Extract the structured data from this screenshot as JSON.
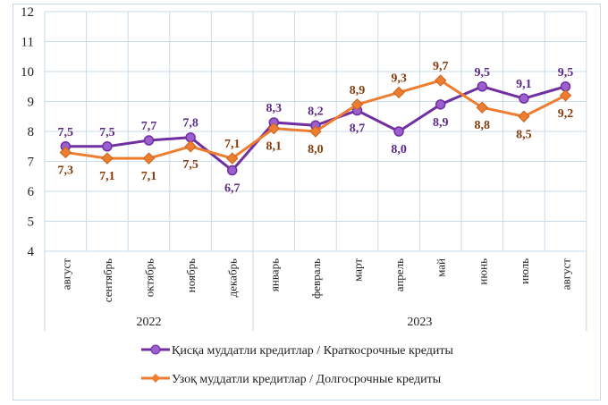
{
  "chart_data": {
    "type": "line",
    "categories": [
      "август",
      "сентябрь",
      "октябрь",
      "ноябрь",
      "декабрь",
      "январь",
      "февраль",
      "март",
      "апрель",
      "май",
      "июнь",
      "июль",
      "август"
    ],
    "groups": [
      {
        "label": "2022",
        "count": 5
      },
      {
        "label": "2023",
        "count": 8
      }
    ],
    "ylim": [
      4,
      12
    ],
    "yticks": [
      4,
      5,
      6,
      7,
      8,
      9,
      10,
      11,
      12
    ],
    "grid": true,
    "legend_position": "bottom",
    "series": [
      {
        "name": "Қисқа муддатли кредитлар  / Краткосрочные кредиты",
        "color": "#7030a0",
        "label_color": "#5b2a86",
        "marker": "circle",
        "values": [
          7.5,
          7.5,
          7.7,
          7.8,
          6.7,
          8.3,
          8.2,
          8.7,
          8.0,
          8.9,
          9.5,
          9.1,
          9.5
        ],
        "labels": [
          "7,5",
          "7,5",
          "7,7",
          "7,8",
          "6,7",
          "8,3",
          "8,2",
          "8,7",
          "8,0",
          "8,9",
          "9,5",
          "9,1",
          "9,5"
        ],
        "label_above": [
          true,
          true,
          true,
          true,
          false,
          true,
          true,
          false,
          false,
          false,
          true,
          true,
          true
        ]
      },
      {
        "name": "Узоқ муддатли кредитлар  / Долгосрочные кредиты",
        "color": "#ed7d31",
        "label_color": "#843c0c",
        "marker": "diamond",
        "values": [
          7.3,
          7.1,
          7.1,
          7.5,
          7.1,
          8.1,
          8.0,
          8.9,
          9.3,
          9.7,
          8.8,
          8.5,
          9.2
        ],
        "labels": [
          "7,3",
          "7,1",
          "7,1",
          "7,5",
          "7,1",
          "8,1",
          "8,0",
          "8,9",
          "9,3",
          "9,7",
          "8,8",
          "8,5",
          "9,2"
        ],
        "label_above": [
          false,
          false,
          false,
          false,
          true,
          false,
          false,
          true,
          true,
          true,
          false,
          false,
          false
        ]
      }
    ]
  }
}
